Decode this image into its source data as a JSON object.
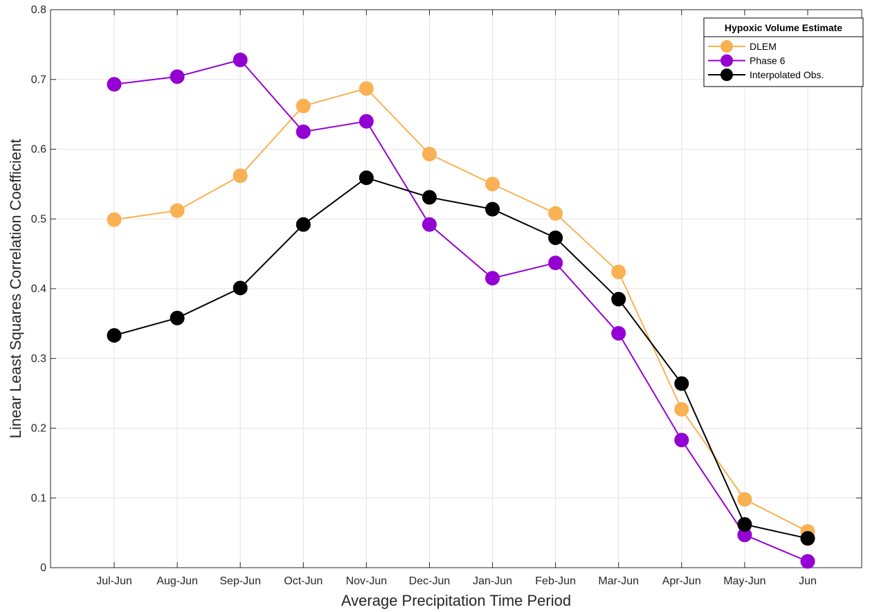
{
  "chart_data": {
    "type": "line",
    "title": "",
    "xlabel": "Average Precipitation Time Period",
    "ylabel": "Linear Least Squares Correlation Coefficient",
    "ylim": [
      0,
      0.8
    ],
    "yticks": [
      "0",
      "0.1",
      "0.2",
      "0.3",
      "0.4",
      "0.5",
      "0.6",
      "0.7",
      "0.8"
    ],
    "grid": true,
    "legend_position": "top-right",
    "legend_title": "Hypoxic Volume Estimate",
    "categories": [
      "Jul-Jun",
      "Aug-Jun",
      "Sep-Jun",
      "Oct-Jun",
      "Nov-Jun",
      "Dec-Jun",
      "Jan-Jun",
      "Feb-Jun",
      "Mar-Jun",
      "Apr-Jun",
      "May-Jun",
      "Jun"
    ],
    "series": [
      {
        "name": "DLEM",
        "color": "#F9B153",
        "values": [
          0.499,
          0.512,
          0.562,
          0.662,
          0.687,
          0.593,
          0.55,
          0.508,
          0.424,
          0.227,
          0.098,
          0.052
        ]
      },
      {
        "name": "Phase 6",
        "color": "#9400D3",
        "values": [
          0.693,
          0.704,
          0.728,
          0.625,
          0.64,
          0.492,
          0.415,
          0.437,
          0.336,
          0.183,
          0.047,
          0.009
        ]
      },
      {
        "name": "Interpolated Obs.",
        "color": "#000000",
        "values": [
          0.333,
          0.358,
          0.401,
          0.492,
          0.559,
          0.531,
          0.514,
          0.473,
          0.385,
          0.264,
          0.062,
          0.042
        ]
      }
    ]
  }
}
